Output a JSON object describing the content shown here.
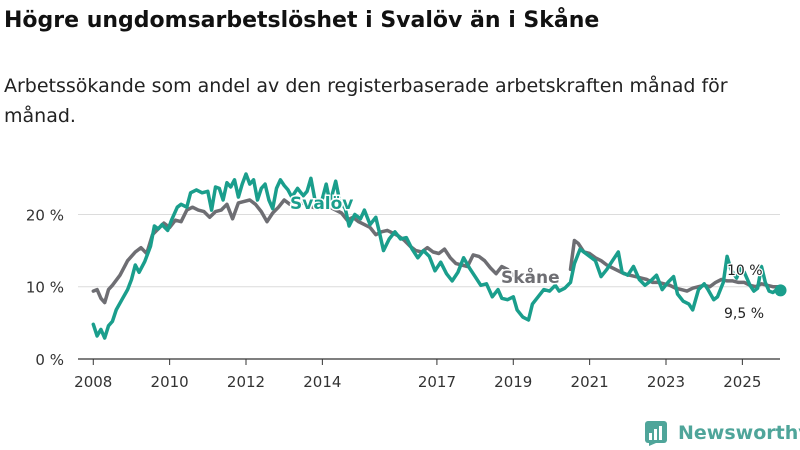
{
  "title": "Högre ungdomsarbetslöshet i Svalöv än i Skåne",
  "subtitle": "Arbetssökande som andel av den registerbaserade arbetskraften månad för månad.",
  "brand": "Newsworthy",
  "brand_icon": "bar-chart-logo-icon",
  "colors": {
    "svalov": "#1a9e8c",
    "skane": "#6e6e73",
    "grid": "#dcdcdc",
    "axis": "#333333",
    "brand": "#4fa59a"
  },
  "chart_data": {
    "type": "line",
    "title": "Högre ungdomsarbetslöshet i Svalöv än i Skåne",
    "xlabel": "",
    "ylabel": "",
    "xlim": [
      2007.6,
      2026.3
    ],
    "ylim": [
      0,
      22
    ],
    "y_ticks": [
      0,
      10,
      20
    ],
    "y_tick_labels": [
      "0 %",
      "10 %",
      "20 %"
    ],
    "x_ticks": [
      2008,
      2010,
      2012,
      2014,
      2017,
      2019,
      2021,
      2023,
      2025
    ],
    "x_tick_labels": [
      "2008",
      "2010",
      "2012",
      "2014",
      "2017",
      "2019",
      "2021",
      "2023",
      "2025"
    ],
    "grid": true,
    "series": [
      {
        "name": "Svalöv",
        "label": "Svalöv",
        "color": "#1a9e8c",
        "end_label": "9,5 %",
        "end_value": 9.5,
        "points": [
          [
            2008.0,
            4.8
          ],
          [
            2008.1,
            3.2
          ],
          [
            2008.2,
            4.1
          ],
          [
            2008.3,
            2.9
          ],
          [
            2008.4,
            4.6
          ],
          [
            2008.5,
            5.2
          ],
          [
            2008.6,
            6.8
          ],
          [
            2008.75,
            8.2
          ],
          [
            2008.9,
            9.6
          ],
          [
            2009.0,
            11.0
          ],
          [
            2009.1,
            13.0
          ],
          [
            2009.2,
            12.0
          ],
          [
            2009.35,
            13.5
          ],
          [
            2009.5,
            15.6
          ],
          [
            2009.6,
            18.4
          ],
          [
            2009.7,
            18.0
          ],
          [
            2009.8,
            18.6
          ],
          [
            2009.95,
            17.8
          ],
          [
            2010.05,
            19.2
          ],
          [
            2010.2,
            21.0
          ],
          [
            2010.3,
            21.4
          ],
          [
            2010.45,
            21.0
          ],
          [
            2010.55,
            23.0
          ],
          [
            2010.7,
            23.4
          ],
          [
            2010.85,
            23.0
          ],
          [
            2011.0,
            23.2
          ],
          [
            2011.1,
            20.6
          ],
          [
            2011.2,
            23.8
          ],
          [
            2011.3,
            23.6
          ],
          [
            2011.4,
            22.0
          ],
          [
            2011.5,
            24.4
          ],
          [
            2011.6,
            23.8
          ],
          [
            2011.7,
            24.8
          ],
          [
            2011.8,
            22.4
          ],
          [
            2011.9,
            24.2
          ],
          [
            2012.0,
            25.6
          ],
          [
            2012.1,
            24.2
          ],
          [
            2012.2,
            24.8
          ],
          [
            2012.3,
            22.0
          ],
          [
            2012.4,
            23.6
          ],
          [
            2012.5,
            24.2
          ],
          [
            2012.6,
            22.0
          ],
          [
            2012.7,
            20.8
          ],
          [
            2012.8,
            23.6
          ],
          [
            2012.9,
            24.8
          ],
          [
            2013.0,
            24.0
          ],
          [
            2013.1,
            23.4
          ],
          [
            2013.2,
            22.4
          ],
          [
            2013.35,
            23.6
          ],
          [
            2013.5,
            22.6
          ],
          [
            2013.6,
            23.2
          ],
          [
            2013.7,
            25.0
          ],
          [
            2013.8,
            22.2
          ],
          [
            2013.9,
            21.6
          ],
          [
            2014.0,
            22.2
          ],
          [
            2014.1,
            24.2
          ],
          [
            2014.2,
            21.6
          ],
          [
            2014.35,
            24.6
          ],
          [
            2014.45,
            22.0
          ],
          [
            2014.6,
            20.8
          ],
          [
            2014.7,
            18.4
          ],
          [
            2014.85,
            20.0
          ],
          [
            2015.0,
            19.4
          ],
          [
            2015.1,
            20.6
          ],
          [
            2015.25,
            18.6
          ],
          [
            2015.4,
            19.6
          ],
          [
            2015.5,
            17.4
          ],
          [
            2015.6,
            15.0
          ],
          [
            2015.75,
            16.6
          ],
          [
            2015.9,
            17.6
          ],
          [
            2016.05,
            16.6
          ],
          [
            2016.2,
            16.8
          ],
          [
            2016.35,
            15.2
          ],
          [
            2016.5,
            14.0
          ],
          [
            2016.65,
            15.0
          ],
          [
            2016.8,
            14.2
          ],
          [
            2016.95,
            12.2
          ],
          [
            2017.1,
            13.4
          ],
          [
            2017.25,
            11.8
          ],
          [
            2017.4,
            10.8
          ],
          [
            2017.55,
            12.0
          ],
          [
            2017.7,
            14.0
          ],
          [
            2017.85,
            12.6
          ],
          [
            2018.0,
            11.4
          ],
          [
            2018.15,
            10.2
          ],
          [
            2018.3,
            10.4
          ],
          [
            2018.45,
            8.6
          ],
          [
            2018.6,
            9.6
          ],
          [
            2018.7,
            8.4
          ],
          [
            2018.85,
            8.2
          ],
          [
            2019.0,
            8.6
          ],
          [
            2019.1,
            6.8
          ],
          [
            2019.25,
            5.8
          ],
          [
            2019.4,
            5.4
          ],
          [
            2019.5,
            7.6
          ],
          [
            2019.65,
            8.6
          ],
          [
            2019.8,
            9.6
          ],
          [
            2019.95,
            9.4
          ],
          [
            2020.1,
            10.2
          ],
          [
            2020.2,
            9.4
          ],
          [
            2020.35,
            9.8
          ],
          [
            2020.5,
            10.6
          ],
          [
            2020.6,
            13.2
          ],
          [
            2020.75,
            15.2
          ],
          [
            2020.9,
            14.6
          ],
          [
            2021.0,
            14.2
          ],
          [
            2021.15,
            13.6
          ],
          [
            2021.3,
            11.4
          ],
          [
            2021.45,
            12.4
          ],
          [
            2021.6,
            13.6
          ],
          [
            2021.75,
            14.8
          ],
          [
            2021.85,
            12.0
          ],
          [
            2022.0,
            11.6
          ],
          [
            2022.15,
            12.8
          ],
          [
            2022.3,
            11.0
          ],
          [
            2022.45,
            10.2
          ],
          [
            2022.6,
            10.8
          ],
          [
            2022.75,
            11.6
          ],
          [
            2022.9,
            9.6
          ],
          [
            2023.05,
            10.6
          ],
          [
            2023.2,
            11.4
          ],
          [
            2023.3,
            9.0
          ],
          [
            2023.45,
            8.0
          ],
          [
            2023.6,
            7.6
          ],
          [
            2023.7,
            6.8
          ],
          [
            2023.85,
            9.6
          ],
          [
            2024.0,
            10.4
          ],
          [
            2024.1,
            9.6
          ],
          [
            2024.25,
            8.2
          ],
          [
            2024.35,
            8.6
          ],
          [
            2024.5,
            10.6
          ],
          [
            2024.6,
            14.2
          ],
          [
            2024.7,
            12.4
          ],
          [
            2024.85,
            11.2
          ],
          [
            2024.95,
            12.6
          ],
          [
            2025.05,
            12.0
          ],
          [
            2025.2,
            10.2
          ],
          [
            2025.3,
            9.4
          ],
          [
            2025.4,
            9.8
          ],
          [
            2025.5,
            12.8
          ],
          [
            2025.6,
            10.6
          ],
          [
            2025.7,
            9.4
          ],
          [
            2025.8,
            9.2
          ],
          [
            2025.9,
            9.6
          ],
          [
            2026.0,
            9.5
          ]
        ]
      },
      {
        "name": "Skåne",
        "label": "Skåne",
        "color": "#6e6e73",
        "end_label": "10 %",
        "end_value": 10,
        "points": [
          [
            2008.0,
            9.4
          ],
          [
            2008.1,
            9.6
          ],
          [
            2008.2,
            8.4
          ],
          [
            2008.3,
            7.8
          ],
          [
            2008.4,
            9.6
          ],
          [
            2008.5,
            10.2
          ],
          [
            2008.7,
            11.6
          ],
          [
            2008.9,
            13.6
          ],
          [
            2009.1,
            14.8
          ],
          [
            2009.25,
            15.4
          ],
          [
            2009.4,
            14.6
          ],
          [
            2009.55,
            17.2
          ],
          [
            2009.7,
            18.0
          ],
          [
            2009.85,
            18.8
          ],
          [
            2010.0,
            18.2
          ],
          [
            2010.15,
            19.2
          ],
          [
            2010.3,
            19.0
          ],
          [
            2010.45,
            20.6
          ],
          [
            2010.6,
            21.0
          ],
          [
            2010.75,
            20.6
          ],
          [
            2010.9,
            20.4
          ],
          [
            2011.05,
            19.6
          ],
          [
            2011.2,
            20.4
          ],
          [
            2011.35,
            20.6
          ],
          [
            2011.5,
            21.4
          ],
          [
            2011.65,
            19.4
          ],
          [
            2011.8,
            21.6
          ],
          [
            2011.95,
            21.8
          ],
          [
            2012.1,
            22.0
          ],
          [
            2012.25,
            21.4
          ],
          [
            2012.4,
            20.4
          ],
          [
            2012.55,
            19.0
          ],
          [
            2012.7,
            20.2
          ],
          [
            2012.85,
            21.0
          ],
          [
            2013.0,
            22.0
          ],
          [
            2013.15,
            21.4
          ],
          [
            2013.3,
            21.2
          ],
          [
            2013.45,
            21.6
          ],
          [
            2013.6,
            21.4
          ],
          [
            2013.75,
            21.0
          ],
          [
            2013.9,
            20.8
          ],
          [
            2014.05,
            21.2
          ],
          [
            2014.2,
            21.0
          ],
          [
            2014.35,
            20.6
          ],
          [
            2014.5,
            20.2
          ],
          [
            2014.65,
            19.2
          ],
          [
            2014.8,
            19.6
          ],
          [
            2014.95,
            19.0
          ],
          [
            2015.1,
            18.6
          ],
          [
            2015.25,
            18.2
          ],
          [
            2015.4,
            17.2
          ],
          [
            2015.55,
            17.6
          ],
          [
            2015.7,
            17.8
          ],
          [
            2015.85,
            17.4
          ],
          [
            2016.0,
            17.0
          ],
          [
            2016.15,
            16.4
          ],
          [
            2016.3,
            15.6
          ],
          [
            2016.45,
            15.0
          ],
          [
            2016.6,
            14.8
          ],
          [
            2016.75,
            15.4
          ],
          [
            2016.9,
            14.8
          ],
          [
            2017.05,
            14.6
          ],
          [
            2017.2,
            15.2
          ],
          [
            2017.35,
            14.0
          ],
          [
            2017.5,
            13.2
          ],
          [
            2017.65,
            13.0
          ],
          [
            2017.8,
            12.8
          ],
          [
            2017.95,
            14.4
          ],
          [
            2018.1,
            14.2
          ],
          [
            2018.25,
            13.6
          ],
          [
            2018.4,
            12.6
          ],
          [
            2018.55,
            11.8
          ],
          [
            2018.7,
            12.8
          ],
          [
            2018.85,
            12.4
          ],
          [
            2019.0,
            11.6
          ]
        ]
      },
      {
        "name": "Skåne (efter 2020)",
        "label": "",
        "color": "#6e6e73",
        "points": [
          [
            2020.5,
            12.4
          ],
          [
            2020.6,
            16.4
          ],
          [
            2020.7,
            16.0
          ],
          [
            2020.85,
            14.8
          ],
          [
            2021.0,
            14.6
          ],
          [
            2021.15,
            14.0
          ],
          [
            2021.3,
            13.6
          ],
          [
            2021.45,
            13.0
          ],
          [
            2021.6,
            12.6
          ],
          [
            2021.75,
            12.2
          ],
          [
            2021.9,
            11.8
          ],
          [
            2022.05,
            11.6
          ],
          [
            2022.2,
            11.4
          ],
          [
            2022.35,
            11.2
          ],
          [
            2022.5,
            11.0
          ],
          [
            2022.65,
            10.6
          ],
          [
            2022.8,
            10.6
          ],
          [
            2022.95,
            10.4
          ],
          [
            2023.1,
            10.2
          ],
          [
            2023.25,
            9.8
          ],
          [
            2023.4,
            9.6
          ],
          [
            2023.55,
            9.4
          ],
          [
            2023.7,
            9.8
          ],
          [
            2023.85,
            10.0
          ],
          [
            2024.0,
            10.2
          ],
          [
            2024.15,
            10.0
          ],
          [
            2024.3,
            10.6
          ],
          [
            2024.45,
            11.0
          ],
          [
            2024.6,
            10.8
          ],
          [
            2024.75,
            10.8
          ],
          [
            2024.9,
            10.6
          ],
          [
            2025.05,
            10.6
          ],
          [
            2025.2,
            10.2
          ],
          [
            2025.35,
            10.0
          ],
          [
            2025.5,
            10.4
          ],
          [
            2025.65,
            10.2
          ],
          [
            2025.8,
            10.0
          ],
          [
            2026.0,
            10.0
          ]
        ]
      }
    ]
  }
}
